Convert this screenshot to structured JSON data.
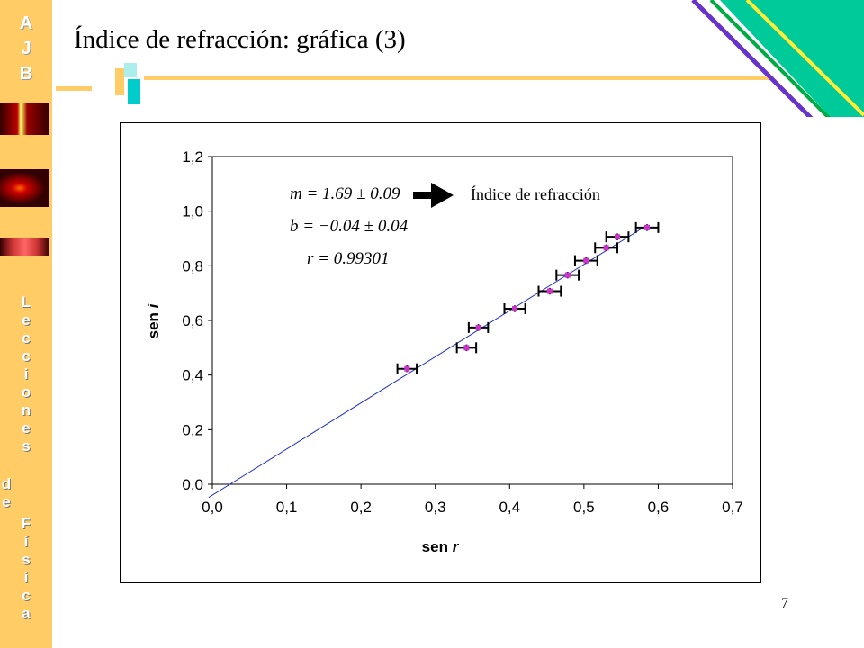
{
  "sidebar": {
    "brand_letters": [
      "A",
      "J",
      "B"
    ],
    "word1_letters": [
      "L",
      "e",
      "c",
      "c",
      "i",
      "o",
      "n",
      "e",
      "s"
    ],
    "word2_letters": [
      "d",
      "e"
    ],
    "word3_letters": [
      "F",
      "í",
      "s",
      "i",
      "c",
      "a"
    ]
  },
  "slide": {
    "title": "Índice de refracción: gráfica (3)",
    "page_number": "7"
  },
  "colors": {
    "sidebar": "#FFCC66",
    "accent_yellow": "#FFCC33",
    "accent_cyan": "#00DDCC",
    "accent_green": "#00C99A",
    "accent_purple": "#6633CC",
    "fit_line": "#2233CC",
    "point_marker": "#CC33CC"
  },
  "chart_data": {
    "type": "scatter",
    "x_label_prefix": "sen ",
    "x_label_var": "r",
    "y_label_prefix": "sen ",
    "y_label_var": "i",
    "xlim": [
      0,
      0.7
    ],
    "ylim": [
      0,
      1.2
    ],
    "x_ticks": [
      "0,0",
      "0,1",
      "0,2",
      "0,3",
      "0,4",
      "0,5",
      "0,6",
      "0,7"
    ],
    "y_ticks": [
      "0,0",
      "0,2",
      "0,4",
      "0,6",
      "0,8",
      "1,0",
      "1,2"
    ],
    "grid": false,
    "points": [
      {
        "x": 0.262,
        "y": 0.423,
        "xerr": 0.013,
        "yerr": 0.012
      },
      {
        "x": 0.342,
        "y": 0.5,
        "xerr": 0.013,
        "yerr": 0.012
      },
      {
        "x": 0.358,
        "y": 0.574,
        "xerr": 0.013,
        "yerr": 0.012
      },
      {
        "x": 0.407,
        "y": 0.643,
        "xerr": 0.014,
        "yerr": 0.012
      },
      {
        "x": 0.454,
        "y": 0.707,
        "xerr": 0.015,
        "yerr": 0.012
      },
      {
        "x": 0.478,
        "y": 0.766,
        "xerr": 0.015,
        "yerr": 0.012
      },
      {
        "x": 0.503,
        "y": 0.819,
        "xerr": 0.015,
        "yerr": 0.012
      },
      {
        "x": 0.53,
        "y": 0.866,
        "xerr": 0.015,
        "yerr": 0.012
      },
      {
        "x": 0.545,
        "y": 0.906,
        "xerr": 0.015,
        "yerr": 0.012
      },
      {
        "x": 0.585,
        "y": 0.94,
        "xerr": 0.015,
        "yerr": 0.012
      }
    ],
    "fit": {
      "slope": 1.69,
      "intercept": -0.04,
      "x_range": [
        -0.005,
        0.585
      ]
    },
    "annotations": {
      "m": "m = 1.69 ± 0.09",
      "b": "b = −0.04 ± 0.04",
      "r": "r = 0.99301",
      "arrow_label": "Índice de refracción"
    }
  }
}
